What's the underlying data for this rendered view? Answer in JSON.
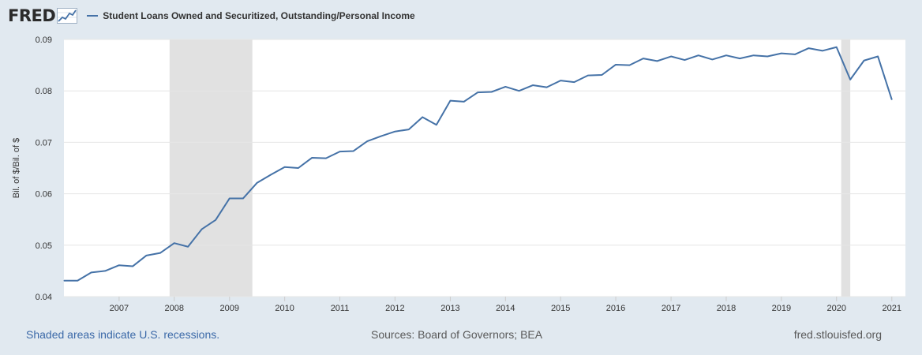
{
  "logo": {
    "text": "FRED",
    "icon": "trend-chart-icon"
  },
  "colors": {
    "series": "#4572a7",
    "recession": "#e1e1e1",
    "background": "#e1e9f0",
    "plot": "#ffffff",
    "grid": "#e6e6e6"
  },
  "footer": {
    "recession_note": "Shaded areas indicate U.S. recessions.",
    "sources": "Sources: Board of Governors; BEA",
    "site": "fred.stlouisfed.org"
  },
  "chart_data": {
    "type": "line",
    "ylabel": "Bil. of $/Bil. of $",
    "ylim": [
      0.04,
      0.09
    ],
    "yticks": [
      "0.04",
      "0.05",
      "0.06",
      "0.07",
      "0.08",
      "0.09"
    ],
    "xlim": [
      "2006-01-01",
      "2021-04-01"
    ],
    "xticks": [
      "2007",
      "2008",
      "2009",
      "2010",
      "2011",
      "2012",
      "2013",
      "2014",
      "2015",
      "2016",
      "2017",
      "2018",
      "2019",
      "2020",
      "2021"
    ],
    "grid": "horizontal",
    "legend_position": "top-left",
    "recessions": [
      [
        "2007-12-01",
        "2009-06-01"
      ],
      [
        "2020-02-01",
        "2020-04-01"
      ]
    ],
    "series": [
      {
        "name": "Student Loans Owned and Securitized, Outstanding/Personal Income",
        "x": [
          "2006-01-01",
          "2006-04-01",
          "2006-07-01",
          "2006-10-01",
          "2007-01-01",
          "2007-04-01",
          "2007-07-01",
          "2007-10-01",
          "2008-01-01",
          "2008-04-01",
          "2008-07-01",
          "2008-10-01",
          "2009-01-01",
          "2009-04-01",
          "2009-07-01",
          "2009-10-01",
          "2010-01-01",
          "2010-04-01",
          "2010-07-01",
          "2010-10-01",
          "2011-01-01",
          "2011-04-01",
          "2011-07-01",
          "2011-10-01",
          "2012-01-01",
          "2012-04-01",
          "2012-07-01",
          "2012-10-01",
          "2013-01-01",
          "2013-04-01",
          "2013-07-01",
          "2013-10-01",
          "2014-01-01",
          "2014-04-01",
          "2014-07-01",
          "2014-10-01",
          "2015-01-01",
          "2015-04-01",
          "2015-07-01",
          "2015-10-01",
          "2016-01-01",
          "2016-04-01",
          "2016-07-01",
          "2016-10-01",
          "2017-01-01",
          "2017-04-01",
          "2017-07-01",
          "2017-10-01",
          "2018-01-01",
          "2018-04-01",
          "2018-07-01",
          "2018-10-01",
          "2019-01-01",
          "2019-04-01",
          "2019-07-01",
          "2019-10-01",
          "2020-01-01",
          "2020-04-01",
          "2020-07-01",
          "2020-10-01",
          "2021-01-01"
        ],
        "values": [
          0.0431,
          0.0431,
          0.0447,
          0.045,
          0.0461,
          0.0459,
          0.048,
          0.0485,
          0.0504,
          0.0497,
          0.0531,
          0.0549,
          0.0591,
          0.0591,
          0.0621,
          0.0637,
          0.0652,
          0.065,
          0.067,
          0.0669,
          0.0682,
          0.0683,
          0.0702,
          0.0712,
          0.0721,
          0.0725,
          0.0749,
          0.0734,
          0.0781,
          0.0779,
          0.0797,
          0.0798,
          0.0808,
          0.08,
          0.0811,
          0.0807,
          0.082,
          0.0817,
          0.083,
          0.0831,
          0.0851,
          0.085,
          0.0863,
          0.0858,
          0.0867,
          0.086,
          0.0869,
          0.0861,
          0.0869,
          0.0863,
          0.0869,
          0.0867,
          0.0873,
          0.0871,
          0.0883,
          0.0878,
          0.0885,
          0.0822,
          0.0859,
          0.0867,
          0.0783
        ]
      }
    ]
  }
}
